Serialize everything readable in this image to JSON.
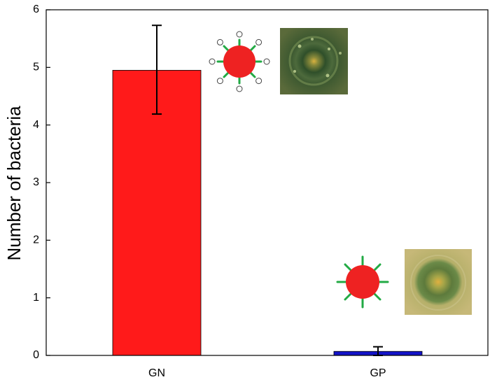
{
  "chart_data": {
    "type": "bar",
    "categories": [
      "GN",
      "GP"
    ],
    "values": [
      4.95,
      0.07
    ],
    "error": [
      {
        "low": 4.19,
        "high": 5.73
      },
      {
        "low": 0.0,
        "high": 0.15
      }
    ],
    "ylabel": "Number of bacteria",
    "xlabel": "",
    "ylim": [
      0,
      6
    ],
    "yticks": [
      "0",
      "1",
      "2",
      "3",
      "4",
      "5",
      "6"
    ],
    "grid": false,
    "colors": [
      "#ff1a1a",
      "#1414c8"
    ]
  },
  "illustrations": {
    "gn": {
      "icon": "gram-negative-bacterium-icon",
      "body_color": "#ee2222",
      "spike_color": "#22aa44"
    },
    "gp": {
      "icon": "gram-positive-bacterium-icon",
      "body_color": "#ee2222",
      "spike_color": "#22aa44"
    }
  }
}
